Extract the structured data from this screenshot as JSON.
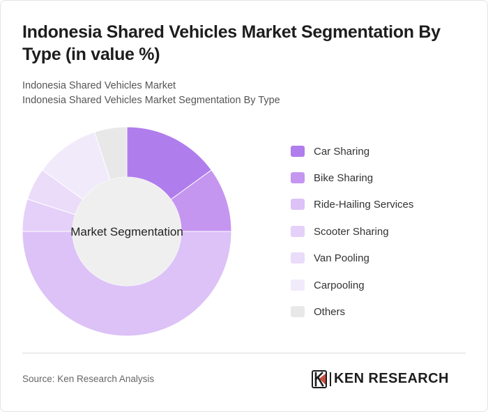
{
  "header": {
    "title": "Indonesia Shared Vehicles Market Segmentation By Type (in value %)",
    "subtitle_line1": "Indonesia Shared Vehicles Market",
    "subtitle_line2": "Indonesia Shared Vehicles Market Segmentation By Type"
  },
  "chart_data": {
    "type": "pie",
    "variant": "donut",
    "center_label": "Market Segmentation",
    "categories": [
      "Car Sharing",
      "Bike Sharing",
      "Ride-Hailing Services",
      "Scooter Sharing",
      "Van Pooling",
      "Carpooling",
      "Others"
    ],
    "values": [
      15,
      10,
      50,
      5,
      5,
      10,
      5
    ],
    "colors": [
      "#b07ded",
      "#c596f0",
      "#dcc2f7",
      "#e4d0f8",
      "#ebdcfa",
      "#f1eafb",
      "#e8e8e8"
    ],
    "legend_position": "right"
  },
  "footer": {
    "source": "Source: Ken Research Analysis",
    "logo_text": "KEN RESEARCH"
  }
}
